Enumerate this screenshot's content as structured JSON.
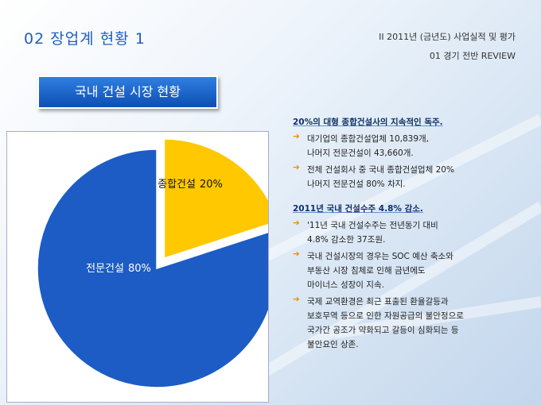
{
  "header": {
    "title": "02  장업계 현황 1",
    "section": "II   2011년 (금년도) 사업실적 및 평가",
    "subsection": "01  경기 전반 REVIEW"
  },
  "chart_heading": "국내 건설 시장 현황",
  "chart_data": {
    "type": "pie",
    "categories": [
      "종합건설",
      "전문건설"
    ],
    "values": [
      20,
      80
    ],
    "value_labels": [
      "20%",
      "80%"
    ],
    "colors": [
      "#ffc800",
      "#1c5cc4"
    ],
    "explode": [
      true,
      false
    ]
  },
  "notes": [
    {
      "heading": "20%의 대형 종합건설사의 지속적인 독주.",
      "items": [
        [
          "대기업의 종합건설업체 10,839개,",
          "나머지 전문건설이 43,660개."
        ],
        [
          "전체 건설회사 중 국내 종합건설업체 20%",
          "나머지 전문건설 80% 차지."
        ]
      ]
    },
    {
      "heading": "2011년 국내 건설수주 4.8% 감소.",
      "items": [
        [
          "'11년 국내 건설수주는 전년동기 대비",
          "4.8% 감소한 37조원."
        ],
        [
          "국내 건설시장의 경우는 SOC 예산 축소와",
          "부동산 시장 침체로 인해 금년에도",
          "마이너스 성장이 지속."
        ],
        [
          "국제 교역환경은 최근 표출된 환율갈등과",
          "보호무역 등으로 인한 자원공급의 불안정으로",
          "국가간 공조가 약화되고 갈등이 심화되는 등",
          "불안요인 상존."
        ]
      ]
    }
  ]
}
